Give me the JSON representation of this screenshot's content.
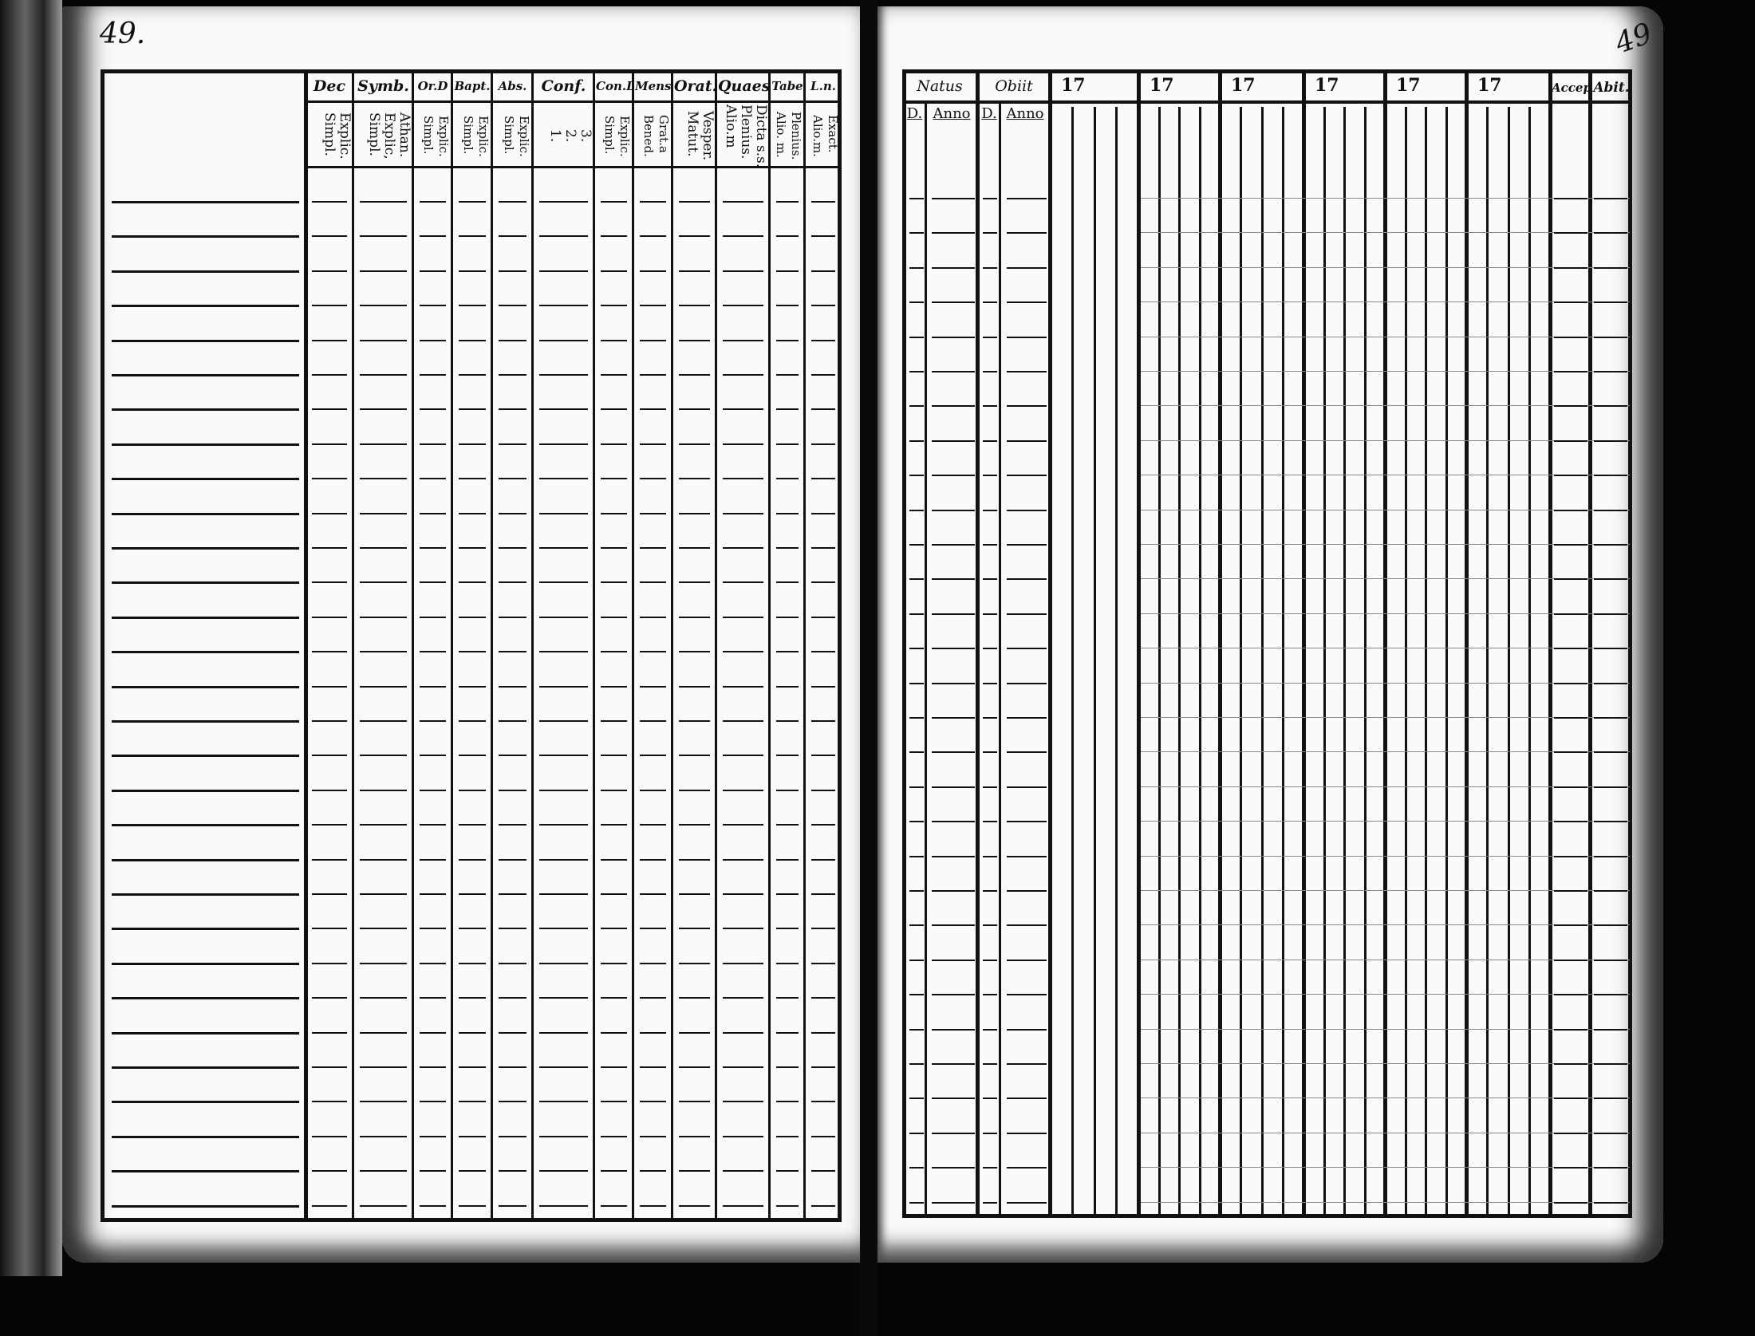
{
  "left_page": {
    "page_number": "49.",
    "headers": [
      {
        "title": "Dec",
        "sub": "Explic.\nSimpl."
      },
      {
        "title": "Symb.",
        "sub": "Athan.\nExplic,\nSimpl."
      },
      {
        "title": "Or.D",
        "sub": "Explic.\nSimpl."
      },
      {
        "title": "Bapt.",
        "sub": "Explic.\nSimpl."
      },
      {
        "title": "Abs.",
        "sub": "Explic.\nSimpl."
      },
      {
        "title": "Conf.",
        "sub": "3.\n2.\n1."
      },
      {
        "title": "Con.D",
        "sub": "Explic.\nSimpl."
      },
      {
        "title": "Mens.",
        "sub": "Grat.a\nBened."
      },
      {
        "title": "Orat.",
        "sub": "Vesper.\nMatut."
      },
      {
        "title": "Quaest.",
        "sub": "Dicta s.s.\nPlenius.\nAlio.m"
      },
      {
        "title": "Tabe",
        "sub": "Plenius.\nAlio. m."
      },
      {
        "title": "L.n.",
        "sub": "Exact.\nAlio.m."
      }
    ]
  },
  "right_page": {
    "page_number": "49",
    "natus": {
      "title": "Natus",
      "day": "D.",
      "year": "Anno"
    },
    "obiit": {
      "title": "Obiit",
      "day": "D.",
      "year": "Anno"
    },
    "year_groups": [
      "17",
      "17",
      "17",
      "17",
      "17",
      "17"
    ],
    "accep": "Accep.",
    "abit": "Abit."
  }
}
